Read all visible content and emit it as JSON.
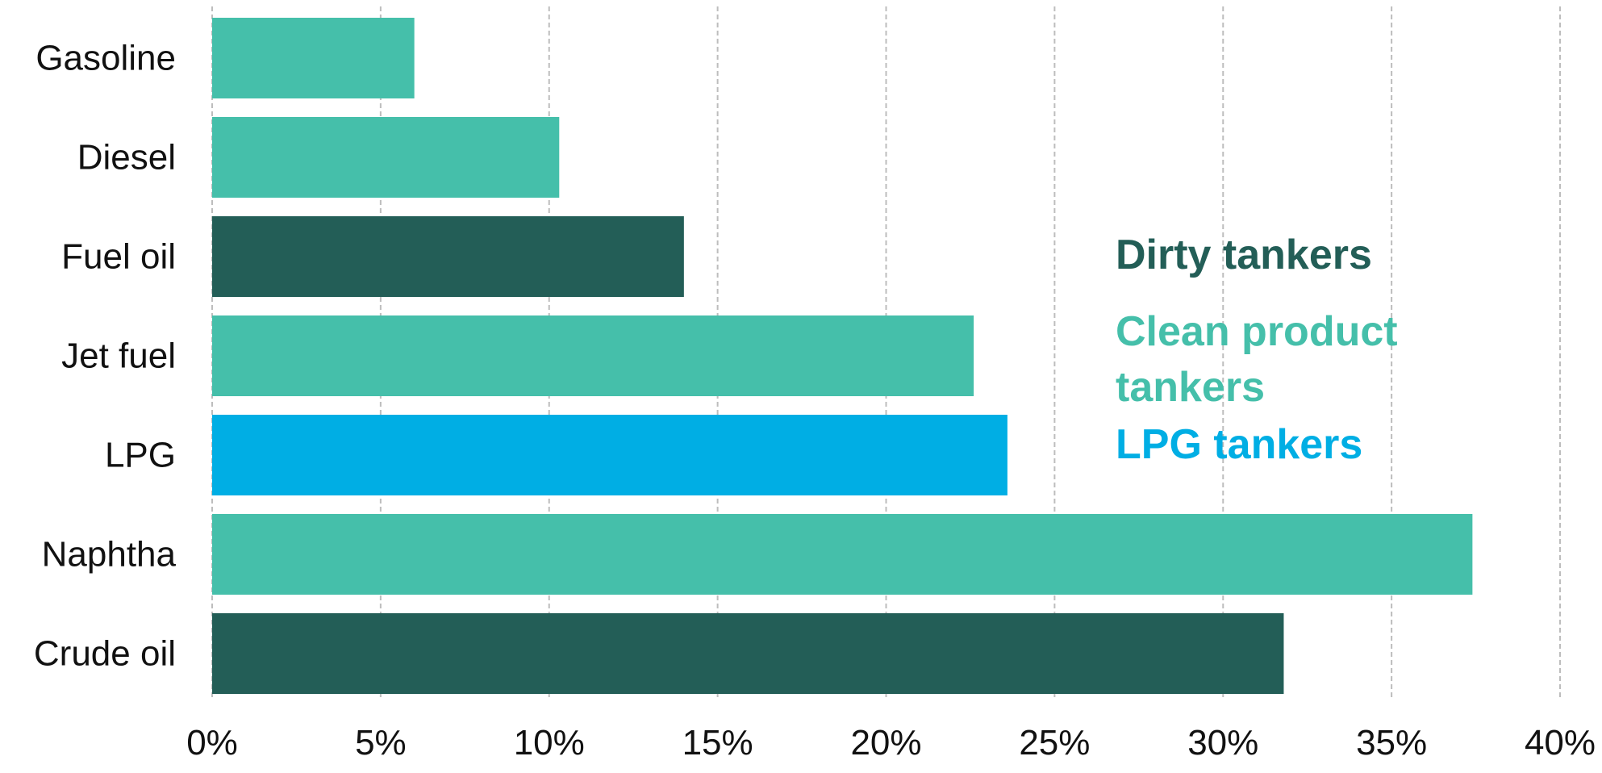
{
  "chart_data": {
    "type": "bar",
    "orientation": "horizontal",
    "categories": [
      "Gasoline",
      "Diesel",
      "Fuel oil",
      "Jet fuel",
      "LPG",
      "Naphtha",
      "Crude oil"
    ],
    "values": [
      6.0,
      10.3,
      14.0,
      22.6,
      23.6,
      37.4,
      31.8
    ],
    "bar_groups": [
      "clean",
      "clean",
      "dirty",
      "clean",
      "lpg",
      "clean",
      "dirty"
    ],
    "xlim": [
      0,
      40
    ],
    "x_ticks": [
      0,
      5,
      10,
      15,
      20,
      25,
      30,
      35,
      40
    ],
    "x_tick_labels": [
      "0%",
      "5%",
      "10%",
      "15%",
      "20%",
      "25%",
      "30%",
      "35%",
      "40%"
    ],
    "grid": "vertical-dashed",
    "legend_placement": "right",
    "legend": [
      {
        "group": "dirty",
        "lines": [
          "Dirty tankers"
        ]
      },
      {
        "group": "clean",
        "lines": [
          "Clean product",
          "tankers"
        ]
      },
      {
        "group": "lpg",
        "lines": [
          "LPG tankers"
        ]
      }
    ],
    "colors": {
      "dirty": "#235E57",
      "clean": "#45BFAA",
      "lpg": "#00AEE4",
      "grid": "#bdbdbd",
      "text": "#111111"
    }
  }
}
